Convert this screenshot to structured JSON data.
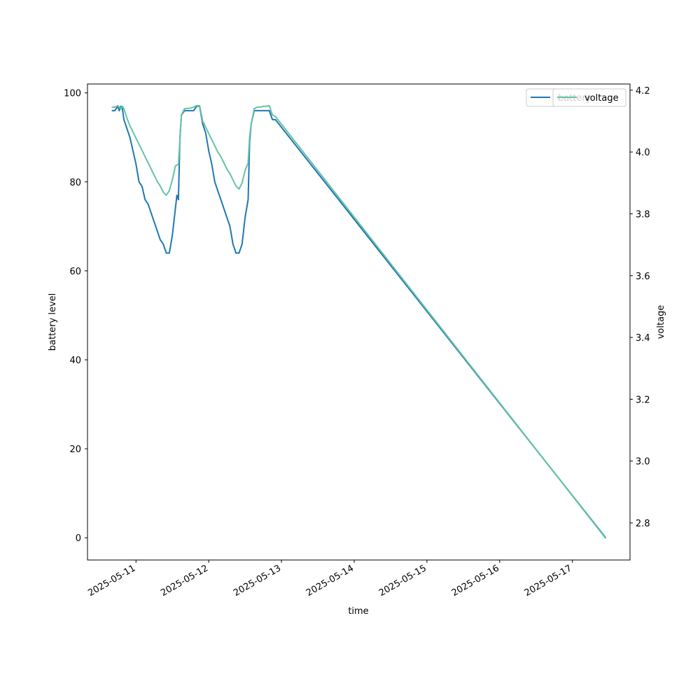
{
  "chart_data": {
    "type": "line",
    "xlabel": "time",
    "ylabel": "battery level",
    "y2label": "voltage",
    "x_ticks": [
      "2025-05-11",
      "2025-05-12",
      "2025-05-13",
      "2025-05-14",
      "2025-05-15",
      "2025-05-16",
      "2025-05-17"
    ],
    "xlim": [
      "2025-05-10T08:00",
      "2025-05-17T19:00"
    ],
    "ylim": [
      -5,
      102
    ],
    "y_ticks": [
      0,
      20,
      40,
      60,
      80,
      100
    ],
    "y2lim": [
      2.68,
      4.22
    ],
    "y2_ticks": [
      "2.8",
      "3.0",
      "3.2",
      "3.4",
      "3.6",
      "3.8",
      "4.0",
      "4.2"
    ],
    "legend_placement": "top-right",
    "grid": false,
    "series": [
      {
        "name": "battery",
        "axis": "left",
        "color": "#1f77b4",
        "points": [
          [
            "2025-05-10T16:00",
            96
          ],
          [
            "2025-05-10T17:00",
            96
          ],
          [
            "2025-05-10T18:00",
            97
          ],
          [
            "2025-05-10T18:30",
            96
          ],
          [
            "2025-05-10T19:00",
            97
          ],
          [
            "2025-05-10T19:30",
            96.5
          ],
          [
            "2025-05-10T20:00",
            94
          ],
          [
            "2025-05-10T21:00",
            92
          ],
          [
            "2025-05-10T22:00",
            90
          ],
          [
            "2025-05-10T23:00",
            87
          ],
          [
            "2025-05-11T00:00",
            84
          ],
          [
            "2025-05-11T01:00",
            80
          ],
          [
            "2025-05-11T02:00",
            79
          ],
          [
            "2025-05-11T03:00",
            76
          ],
          [
            "2025-05-11T04:00",
            75
          ],
          [
            "2025-05-11T05:00",
            73
          ],
          [
            "2025-05-11T06:00",
            71
          ],
          [
            "2025-05-11T07:00",
            69
          ],
          [
            "2025-05-11T08:00",
            67
          ],
          [
            "2025-05-11T09:00",
            66
          ],
          [
            "2025-05-11T10:00",
            64
          ],
          [
            "2025-05-11T11:00",
            64
          ],
          [
            "2025-05-11T12:00",
            68
          ],
          [
            "2025-05-11T13:00",
            74
          ],
          [
            "2025-05-11T13:30",
            77
          ],
          [
            "2025-05-11T14:00",
            76
          ],
          [
            "2025-05-11T14:30",
            90
          ],
          [
            "2025-05-11T15:00",
            95
          ],
          [
            "2025-05-11T16:00",
            96
          ],
          [
            "2025-05-11T17:00",
            96
          ],
          [
            "2025-05-11T18:00",
            96
          ],
          [
            "2025-05-11T19:00",
            96
          ],
          [
            "2025-05-11T20:00",
            97
          ],
          [
            "2025-05-11T21:00",
            97
          ],
          [
            "2025-05-11T22:00",
            93
          ],
          [
            "2025-05-11T23:00",
            91
          ],
          [
            "2025-05-12T00:00",
            87
          ],
          [
            "2025-05-12T01:00",
            84
          ],
          [
            "2025-05-12T02:00",
            80
          ],
          [
            "2025-05-12T03:00",
            78
          ],
          [
            "2025-05-12T04:00",
            76
          ],
          [
            "2025-05-12T05:00",
            74
          ],
          [
            "2025-05-12T06:00",
            72
          ],
          [
            "2025-05-12T07:00",
            70
          ],
          [
            "2025-05-12T08:00",
            66
          ],
          [
            "2025-05-12T09:00",
            64
          ],
          [
            "2025-05-12T10:00",
            64
          ],
          [
            "2025-05-12T11:00",
            66
          ],
          [
            "2025-05-12T12:00",
            72
          ],
          [
            "2025-05-12T13:00",
            76
          ],
          [
            "2025-05-12T13:30",
            89
          ],
          [
            "2025-05-12T14:00",
            93
          ],
          [
            "2025-05-12T15:00",
            96
          ],
          [
            "2025-05-12T16:00",
            96
          ],
          [
            "2025-05-12T17:00",
            96
          ],
          [
            "2025-05-12T18:00",
            96
          ],
          [
            "2025-05-12T19:00",
            96
          ],
          [
            "2025-05-12T20:00",
            96
          ],
          [
            "2025-05-12T21:00",
            94
          ],
          [
            "2025-05-12T22:00",
            94
          ],
          [
            "2025-05-17T11:00",
            0
          ]
        ]
      },
      {
        "name": "voltage",
        "axis": "right",
        "color": "#66c2a5",
        "points": [
          [
            "2025-05-10T16:00",
            4.145
          ],
          [
            "2025-05-10T17:00",
            4.145
          ],
          [
            "2025-05-10T18:00",
            4.15
          ],
          [
            "2025-05-10T19:00",
            4.14
          ],
          [
            "2025-05-10T19:30",
            4.148
          ],
          [
            "2025-05-10T20:00",
            4.14
          ],
          [
            "2025-05-10T21:00",
            4.11
          ],
          [
            "2025-05-10T22:00",
            4.085
          ],
          [
            "2025-05-10T23:00",
            4.065
          ],
          [
            "2025-05-11T00:00",
            4.045
          ],
          [
            "2025-05-11T01:00",
            4.025
          ],
          [
            "2025-05-11T02:00",
            4.005
          ],
          [
            "2025-05-11T03:00",
            3.985
          ],
          [
            "2025-05-11T04:00",
            3.965
          ],
          [
            "2025-05-11T05:00",
            3.945
          ],
          [
            "2025-05-11T06:00",
            3.925
          ],
          [
            "2025-05-11T07:00",
            3.905
          ],
          [
            "2025-05-11T08:00",
            3.89
          ],
          [
            "2025-05-11T09:00",
            3.87
          ],
          [
            "2025-05-11T10:00",
            3.86
          ],
          [
            "2025-05-11T11:00",
            3.875
          ],
          [
            "2025-05-11T12:00",
            3.91
          ],
          [
            "2025-05-11T13:00",
            3.955
          ],
          [
            "2025-05-11T14:00",
            3.96
          ],
          [
            "2025-05-11T14:30",
            4.04
          ],
          [
            "2025-05-11T15:00",
            4.12
          ],
          [
            "2025-05-11T16:00",
            4.14
          ],
          [
            "2025-05-11T18:00",
            4.142
          ],
          [
            "2025-05-11T19:00",
            4.145
          ],
          [
            "2025-05-11T20:00",
            4.15
          ],
          [
            "2025-05-11T21:00",
            4.15
          ],
          [
            "2025-05-11T22:00",
            4.1
          ],
          [
            "2025-05-11T23:00",
            4.08
          ],
          [
            "2025-05-12T00:00",
            4.06
          ],
          [
            "2025-05-12T01:00",
            4.04
          ],
          [
            "2025-05-12T02:00",
            4.02
          ],
          [
            "2025-05-12T03:00",
            4.0
          ],
          [
            "2025-05-12T04:00",
            3.985
          ],
          [
            "2025-05-12T05:00",
            3.965
          ],
          [
            "2025-05-12T06:00",
            3.945
          ],
          [
            "2025-05-12T07:00",
            3.93
          ],
          [
            "2025-05-12T08:00",
            3.91
          ],
          [
            "2025-05-12T09:00",
            3.89
          ],
          [
            "2025-05-12T10:00",
            3.88
          ],
          [
            "2025-05-12T11:00",
            3.9
          ],
          [
            "2025-05-12T12:00",
            3.94
          ],
          [
            "2025-05-12T13:00",
            3.965
          ],
          [
            "2025-05-12T13:30",
            4.05
          ],
          [
            "2025-05-12T14:00",
            4.09
          ],
          [
            "2025-05-12T15:00",
            4.14
          ],
          [
            "2025-05-12T16:00",
            4.145
          ],
          [
            "2025-05-12T17:00",
            4.145
          ],
          [
            "2025-05-12T18:00",
            4.148
          ],
          [
            "2025-05-12T19:00",
            4.148
          ],
          [
            "2025-05-12T20:00",
            4.15
          ],
          [
            "2025-05-12T21:00",
            4.12
          ],
          [
            "2025-05-12T22:00",
            4.115
          ],
          [
            "2025-05-17T11:00",
            2.75
          ]
        ]
      }
    ]
  }
}
